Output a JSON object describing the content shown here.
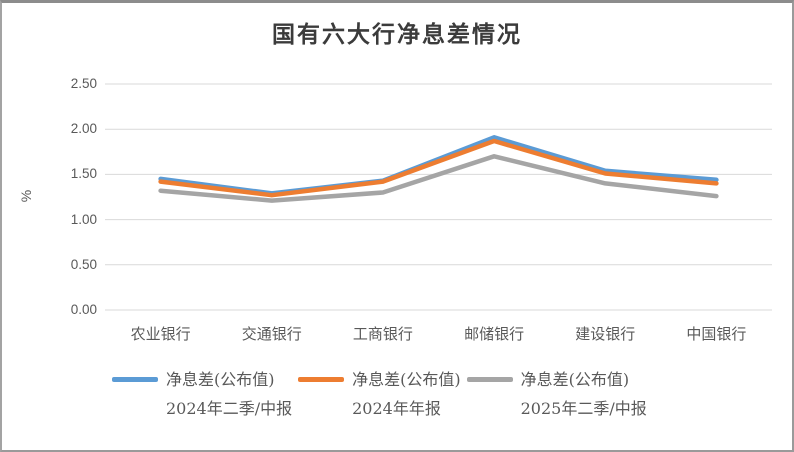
{
  "chart_data": {
    "type": "line",
    "title": "国有六大行净息差情况",
    "ylabel": "%",
    "xlabel": "",
    "ylim": [
      0,
      2.5
    ],
    "ytick_step": 0.5,
    "ytick_labels": [
      "2.50",
      "2.00",
      "1.50",
      "1.00",
      "0.50",
      "0.00"
    ],
    "grid": true,
    "legend_position": "bottom",
    "categories": [
      "农业银行",
      "交通银行",
      "工商银行",
      "邮储银行",
      "建设银行",
      "中国银行"
    ],
    "series": [
      {
        "name": "净息差(公布值)",
        "period": "2024年二季/中报",
        "color": "#5B9BD5",
        "values": [
          1.45,
          1.29,
          1.43,
          1.91,
          1.54,
          1.44
        ]
      },
      {
        "name": "净息差(公布值)",
        "period": "2024年年报",
        "color": "#ED7D31",
        "values": [
          1.42,
          1.27,
          1.42,
          1.87,
          1.51,
          1.4
        ]
      },
      {
        "name": "净息差(公布值)",
        "period": "2025年二季/中报",
        "color": "#A5A5A5",
        "values": [
          1.32,
          1.21,
          1.3,
          1.7,
          1.4,
          1.26
        ]
      }
    ],
    "theme": {
      "gridline_color": "#D9D9D9",
      "axis_text_color": "#595959",
      "title_color": "#3B3B3B",
      "frame_border_color": "#9A9A9A",
      "background_color": "#FFFFFF"
    }
  }
}
